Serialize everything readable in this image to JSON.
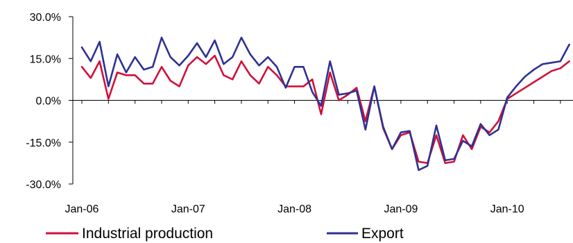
{
  "chart_data": {
    "type": "line",
    "title": "",
    "xlabel": "",
    "ylabel": "",
    "ylim": [
      -30,
      30
    ],
    "y_ticks": [
      "30.0%",
      "15.0%",
      "0.0%",
      "-15.0%",
      "-30.0%"
    ],
    "x_ticks": [
      "Jan-06",
      "Jan-07",
      "Jan-08",
      "Jan-09",
      "Jan-10"
    ],
    "x_start": "Jan-06",
    "x_end": "Apr-10",
    "grid": false,
    "legend_position": "bottom",
    "series": [
      {
        "name": "Industrial production",
        "color": "#d0103a",
        "values": [
          12,
          8,
          14,
          0.5,
          10,
          9,
          9,
          6,
          6,
          12,
          7,
          5,
          12.5,
          15.5,
          13,
          16,
          9,
          7.5,
          14,
          9,
          6,
          12,
          9,
          5,
          5,
          5,
          7.5,
          -5,
          10,
          0,
          2,
          4.5,
          -7.5,
          5,
          -10,
          -17.5,
          -12.5,
          -11.5,
          -22,
          -22.5,
          -12.5,
          -22.5,
          -22,
          -12.5,
          -17.5,
          -9.5,
          -11.5,
          -7.5,
          0.5,
          2.5,
          4.5,
          6.5,
          8.5,
          10.5,
          11.5,
          14
        ]
      },
      {
        "name": "Export",
        "color": "#2e3192",
        "values": [
          19,
          14,
          21,
          5,
          16.5,
          10,
          15.5,
          11,
          12,
          22.5,
          15.5,
          12.5,
          16,
          20.5,
          15.5,
          21.5,
          13,
          15.5,
          22.5,
          16.5,
          12.5,
          15.5,
          12,
          4.5,
          12,
          12,
          3,
          -2,
          14,
          2,
          2.5,
          3.5,
          -10.5,
          5,
          -9.5,
          -17.5,
          -11.5,
          -11,
          -25,
          -23.5,
          -9,
          -21.5,
          -21,
          -14.5,
          -16.5,
          -8.5,
          -12.5,
          -10.5,
          1,
          5,
          8.5,
          11,
          13,
          13.5,
          14,
          20
        ]
      }
    ]
  }
}
